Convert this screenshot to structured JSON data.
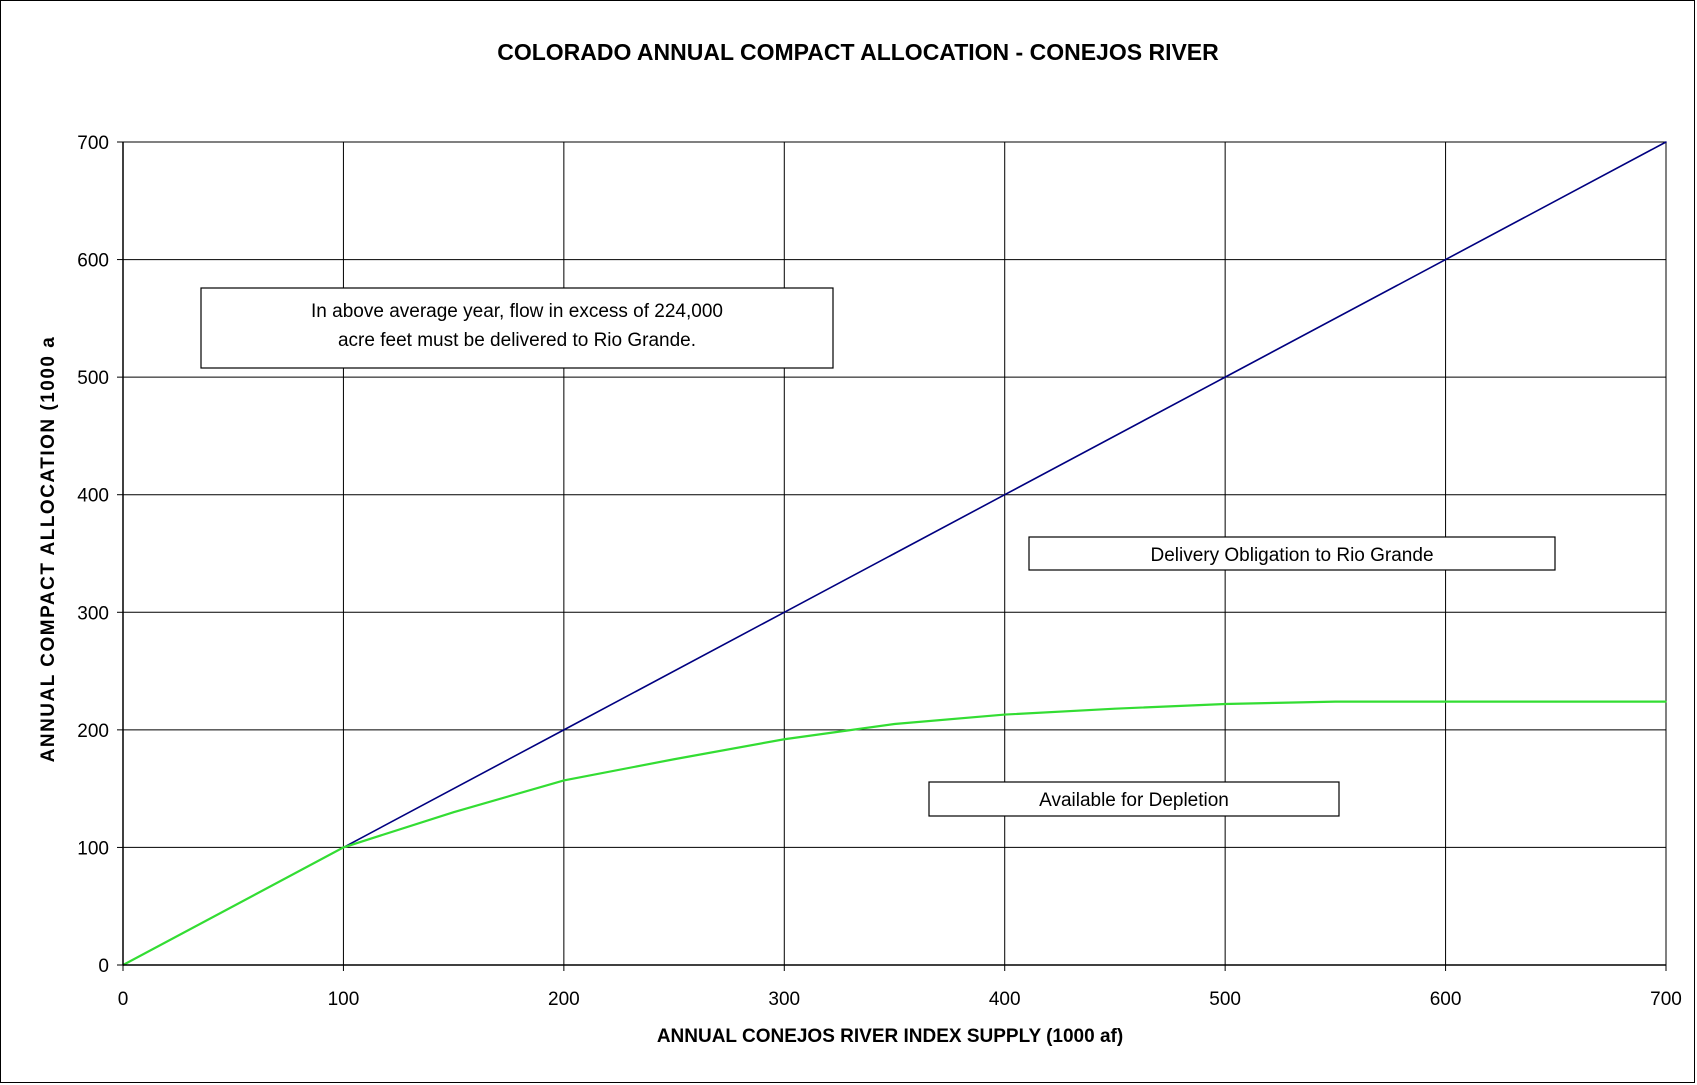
{
  "chart_data": {
    "type": "line",
    "title": "COLORADO ANNUAL COMPACT ALLOCATION - CONEJOS RIVER",
    "xlabel": "ANNUAL CONEJOS RIVER INDEX SUPPLY (1000 af)",
    "ylabel": "ANNUAL COMPACT ALLOCATION (1000 a",
    "xlim": [
      0,
      700
    ],
    "ylim": [
      0,
      700
    ],
    "x_ticks": [
      0,
      100,
      200,
      300,
      400,
      500,
      600,
      700
    ],
    "y_ticks": [
      0,
      100,
      200,
      300,
      400,
      500,
      600,
      700
    ],
    "grid": true,
    "series": [
      {
        "color": "#000080",
        "x": [
          0,
          100,
          200,
          300,
          350,
          400,
          500,
          600,
          700
        ],
        "y": [
          0,
          100,
          200,
          300,
          350,
          400,
          500,
          600,
          700
        ]
      },
      {
        "color": "#33dd33",
        "x": [
          0,
          100,
          150,
          200,
          250,
          300,
          350,
          400,
          450,
          500,
          550,
          600,
          650,
          700
        ],
        "y": [
          0,
          100,
          130,
          157,
          175,
          192,
          205,
          213,
          218,
          222,
          224,
          224,
          224,
          224
        ]
      }
    ],
    "annotations": [
      {
        "id": "note-excess",
        "lines": [
          "In above average year, flow in excess of 224,000",
          "acre feet must be delivered to Rio Grande."
        ]
      },
      {
        "id": "note-delivery",
        "lines": [
          "Delivery Obligation to Rio Grande"
        ]
      },
      {
        "id": "note-depletion",
        "lines": [
          "Available for Depletion"
        ]
      }
    ]
  }
}
